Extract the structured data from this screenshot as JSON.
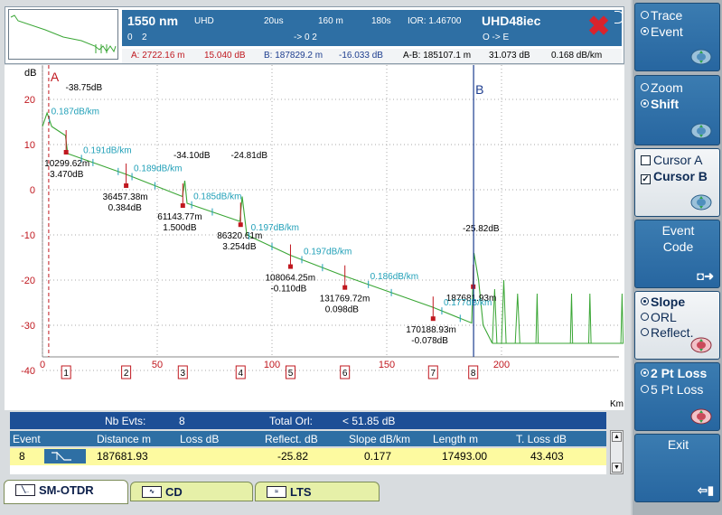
{
  "header": {
    "wavelength": "1550 nm",
    "resolution": "UHD",
    "pulse": "20us",
    "range": "160 m",
    "acq_time": "180s",
    "ior": "IOR: 1.46700",
    "trace_name": "UHD48iec",
    "row2_left_a": "0",
    "row2_left_b": "2",
    "row2_mid": "-> 0   2",
    "row2_right": "O -> E",
    "cursor_a": "A: 2722.16 m",
    "cursor_a_db": "15.040 dB",
    "cursor_b": "B: 187829.2 m",
    "cursor_b_db": "-16.033 dB",
    "ab": "A-B: 185107.1 m",
    "ab_db": "31.073 dB",
    "ab_slope": "0.168 dB/km"
  },
  "plot": {
    "y_unit": "dB",
    "x_unit": "Km",
    "cursor_a_label": "A",
    "cursor_b_label": "B",
    "y_ticks": [
      "20",
      "10",
      "0",
      "-10",
      "-20",
      "-30",
      "-40"
    ],
    "x_ticks": [
      "0",
      "50",
      "100",
      "150",
      "200"
    ],
    "event_numbers": [
      "1",
      "2",
      "3",
      "4",
      "5",
      "6",
      "7",
      "8"
    ],
    "slope_labels": [
      "0.187dB/km",
      "0.191dB/km",
      "0.189dB/km",
      "0.185dB/km",
      "0.197dB/km",
      "0.197dB/km",
      "0.186dB/km",
      "0.177dB/km"
    ],
    "reflect_labels": [
      "-38.75dB",
      "-34.10dB",
      "-24.81dB",
      "-25.82dB"
    ],
    "event_dist": [
      "10299.62m",
      "36457.38m",
      "61143.77m",
      "86320.61m",
      "108064.25m",
      "131769.72m",
      "170188.93m",
      "187681.93m"
    ],
    "event_loss": [
      "3.470dB",
      "0.384dB",
      "1.500dB",
      "3.254dB",
      "-0.110dB",
      "0.098dB",
      "-0.078dB"
    ]
  },
  "summary": {
    "nb_evts_label": "Nb Evts:",
    "nb_evts": "8",
    "total_orl_label": "Total Orl:",
    "total_orl": "< 51.85 dB"
  },
  "table": {
    "headers": [
      "Event",
      "Distance m",
      "Loss dB",
      "Reflect. dB",
      "Slope dB/km",
      "Length m",
      "T. Loss dB"
    ],
    "row": {
      "event": "8",
      "distance": "187681.93",
      "loss": "",
      "reflect": "-25.82",
      "slope": "0.177",
      "length": "17493.00",
      "tloss": "43.403"
    }
  },
  "tabs": [
    "SM-OTDR",
    "CD",
    "LTS"
  ],
  "side": {
    "trace": "Trace",
    "event": "Event",
    "zoom": "Zoom",
    "shift": "Shift",
    "cursor_a": "Cursor A",
    "cursor_b": "Cursor B",
    "event_code_1": "Event",
    "event_code_2": "Code",
    "slope": "Slope",
    "orl": "ORL",
    "reflect": "Reflect.",
    "pt2": "2 Pt Loss",
    "pt5": "5 Pt Loss",
    "exit": "Exit"
  },
  "chart_data": {
    "type": "line",
    "x_unit": "Km",
    "y_unit": "dB",
    "xlim": [
      0,
      220
    ],
    "ylim": [
      -45,
      25
    ],
    "cursors": {
      "A_km": 2.72,
      "B_km": 187.83
    },
    "events": [
      {
        "n": 1,
        "km": 10.3,
        "loss_db": 3.47,
        "reflect_db": -38.75
      },
      {
        "n": 2,
        "km": 36.46,
        "loss_db": 0.384
      },
      {
        "n": 3,
        "km": 61.14,
        "loss_db": 1.5,
        "reflect_db": -34.1
      },
      {
        "n": 4,
        "km": 86.32,
        "loss_db": 3.254,
        "reflect_db": -24.81
      },
      {
        "n": 5,
        "km": 108.06,
        "loss_db": -0.11
      },
      {
        "n": 6,
        "km": 131.77,
        "loss_db": 0.098
      },
      {
        "n": 7,
        "km": 170.19,
        "loss_db": -0.078
      },
      {
        "n": 8,
        "km": 187.68,
        "reflect_db": -25.82
      }
    ],
    "slopes_db_per_km": [
      0.187,
      0.191,
      0.189,
      0.185,
      0.197,
      0.197,
      0.186,
      0.177
    ],
    "trace": [
      [
        0,
        14
      ],
      [
        2,
        17
      ],
      [
        4,
        14
      ],
      [
        10,
        12
      ],
      [
        11,
        8
      ],
      [
        36,
        3.5
      ],
      [
        61,
        -1.5
      ],
      [
        62,
        2
      ],
      [
        63,
        -3
      ],
      [
        86,
        -7
      ],
      [
        87,
        -1.5
      ],
      [
        89,
        -10
      ],
      [
        108,
        -14.5
      ],
      [
        131,
        -19
      ],
      [
        170,
        -26
      ],
      [
        187,
        -29.5
      ],
      [
        188,
        -14
      ],
      [
        190,
        -20
      ],
      [
        192,
        -30
      ],
      [
        196,
        -34
      ]
    ]
  }
}
